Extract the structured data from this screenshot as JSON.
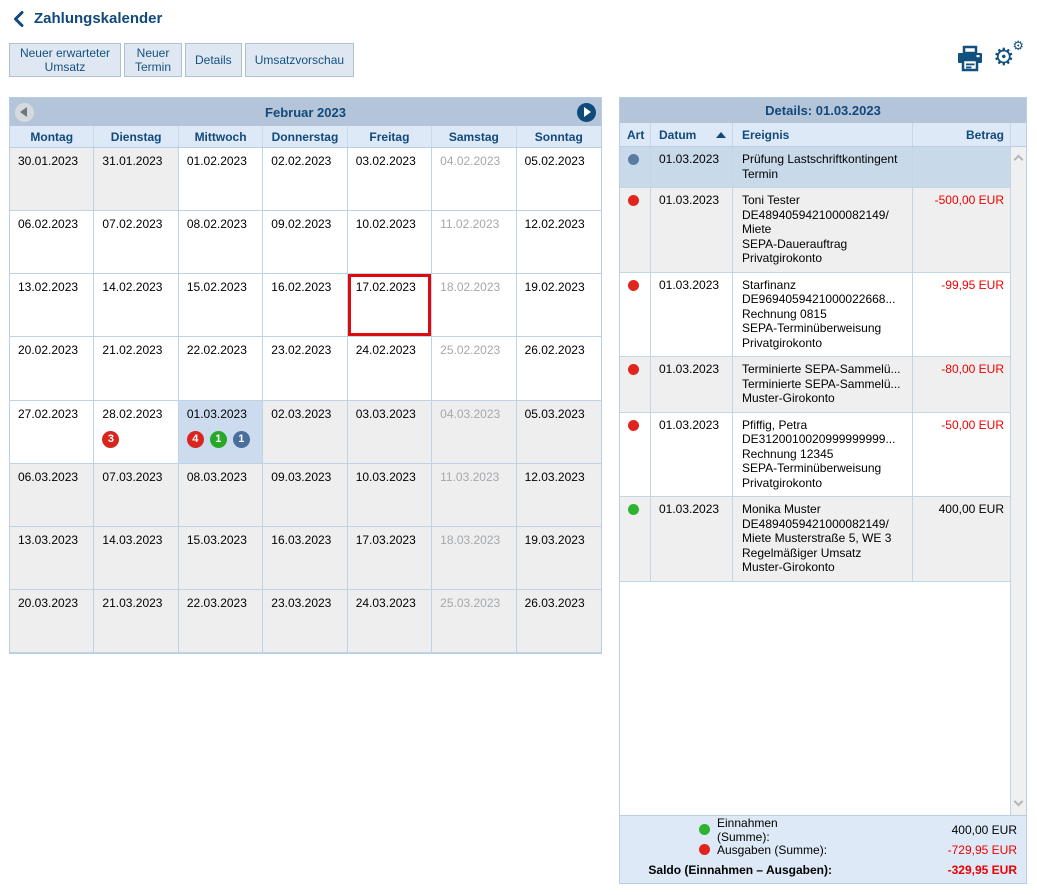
{
  "page": {
    "title": "Zahlungskalender"
  },
  "toolbar": {
    "buttons": [
      "Neuer erwarteter Umsatz",
      "Neuer Termin",
      "Details",
      "Umsatzvorschau"
    ],
    "icons": [
      "print-icon",
      "settings-gears-icon"
    ]
  },
  "colors": {
    "accent_navy": "#12497b",
    "titlebar_blue": "#b5c5d9",
    "header_light_blue": "#dde9f6",
    "selected_blue": "#c8d9ea",
    "today_border_red": "#dd0a12",
    "negative_red": "#ee0000",
    "income_green": "#2db32d",
    "expense_red": "#e0251f",
    "neutral_blue_dot": "#5b7ba4"
  },
  "calendar": {
    "title": "Februar 2023",
    "prev_icon": "left-triangle",
    "next_icon": "right-triangle",
    "day_headers": [
      "Montag",
      "Dienstag",
      "Mittwoch",
      "Donnerstag",
      "Freitag",
      "Samstag",
      "Sonntag"
    ],
    "weeks": [
      [
        {
          "date": "30.01.2023",
          "out": true
        },
        {
          "date": "31.01.2023",
          "out": true
        },
        {
          "date": "01.02.2023"
        },
        {
          "date": "02.02.2023"
        },
        {
          "date": "03.02.2023"
        },
        {
          "date": "04.02.2023",
          "muted": true
        },
        {
          "date": "05.02.2023"
        }
      ],
      [
        {
          "date": "06.02.2023"
        },
        {
          "date": "07.02.2023"
        },
        {
          "date": "08.02.2023"
        },
        {
          "date": "09.02.2023"
        },
        {
          "date": "10.02.2023"
        },
        {
          "date": "11.02.2023",
          "muted": true
        },
        {
          "date": "12.02.2023"
        }
      ],
      [
        {
          "date": "13.02.2023"
        },
        {
          "date": "14.02.2023"
        },
        {
          "date": "15.02.2023"
        },
        {
          "date": "16.02.2023"
        },
        {
          "date": "17.02.2023",
          "today": true
        },
        {
          "date": "18.02.2023",
          "muted": true
        },
        {
          "date": "19.02.2023"
        }
      ],
      [
        {
          "date": "20.02.2023"
        },
        {
          "date": "21.02.2023"
        },
        {
          "date": "22.02.2023"
        },
        {
          "date": "23.02.2023"
        },
        {
          "date": "24.02.2023"
        },
        {
          "date": "25.02.2023",
          "muted": true
        },
        {
          "date": "26.02.2023"
        }
      ],
      [
        {
          "date": "27.02.2023"
        },
        {
          "date": "28.02.2023",
          "badges": [
            {
              "color": "red",
              "count": "3"
            }
          ]
        },
        {
          "date": "01.03.2023",
          "selected": true,
          "badges": [
            {
              "color": "red",
              "count": "4"
            },
            {
              "color": "green",
              "count": "1"
            },
            {
              "color": "blue",
              "count": "1"
            }
          ]
        },
        {
          "date": "02.03.2023",
          "out": true
        },
        {
          "date": "03.03.2023",
          "out": true
        },
        {
          "date": "04.03.2023",
          "out": true,
          "muted": true
        },
        {
          "date": "05.03.2023",
          "out": true
        }
      ],
      [
        {
          "date": "06.03.2023",
          "out": true
        },
        {
          "date": "07.03.2023",
          "out": true
        },
        {
          "date": "08.03.2023",
          "out": true
        },
        {
          "date": "09.03.2023",
          "out": true
        },
        {
          "date": "10.03.2023",
          "out": true
        },
        {
          "date": "11.03.2023",
          "out": true,
          "muted": true
        },
        {
          "date": "12.03.2023",
          "out": true
        }
      ],
      [
        {
          "date": "13.03.2023",
          "out": true
        },
        {
          "date": "14.03.2023",
          "out": true
        },
        {
          "date": "15.03.2023",
          "out": true
        },
        {
          "date": "16.03.2023",
          "out": true
        },
        {
          "date": "17.03.2023",
          "out": true
        },
        {
          "date": "18.03.2023",
          "out": true,
          "muted": true
        },
        {
          "date": "19.03.2023",
          "out": true
        }
      ],
      [
        {
          "date": "20.03.2023",
          "out": true
        },
        {
          "date": "21.03.2023",
          "out": true
        },
        {
          "date": "22.03.2023",
          "out": true
        },
        {
          "date": "23.03.2023",
          "out": true
        },
        {
          "date": "24.03.2023",
          "out": true
        },
        {
          "date": "25.03.2023",
          "out": true,
          "muted": true
        },
        {
          "date": "26.03.2023",
          "out": true
        }
      ]
    ]
  },
  "details": {
    "title": "Details: 01.03.2023",
    "columns": [
      "Art",
      "Datum",
      "Ereignis",
      "Betrag"
    ],
    "sort": {
      "column": "Datum",
      "direction": "asc"
    },
    "rows": [
      {
        "dot": "blue",
        "datum": "01.03.2023",
        "ereignis": [
          "Prüfung Lastschriftkontingent",
          "Termin"
        ],
        "betrag": "",
        "negative": false,
        "selected": true
      },
      {
        "dot": "red",
        "datum": "01.03.2023",
        "ereignis": [
          "Toni Tester",
          "DE4894059421000082149/",
          "Miete",
          "SEPA-Dauerauftrag",
          "Privatgirokonto"
        ],
        "betrag": "-500,00 EUR",
        "negative": true
      },
      {
        "dot": "red",
        "datum": "01.03.2023",
        "ereignis": [
          "Starfinanz",
          "DE9694059421000022668...",
          "Rechnung 0815",
          "SEPA-Terminüberweisung",
          "Privatgirokonto"
        ],
        "betrag": "-99,95 EUR",
        "negative": true
      },
      {
        "dot": "red",
        "datum": "01.03.2023",
        "ereignis": [
          "Terminierte SEPA-Sammelü...",
          "Terminierte SEPA-Sammelü...",
          "Muster-Girokonto"
        ],
        "betrag": "-80,00 EUR",
        "negative": true
      },
      {
        "dot": "red",
        "datum": "01.03.2023",
        "ereignis": [
          "Pfiffig, Petra",
          "DE3120010020999999999...",
          "Rechnung 12345",
          "SEPA-Terminüberweisung",
          "Privatgirokonto"
        ],
        "betrag": "-50,00 EUR",
        "negative": true
      },
      {
        "dot": "green",
        "datum": "01.03.2023",
        "ereignis": [
          "Monika Muster",
          "DE4894059421000082149/",
          "Miete Musterstraße 5, WE 3",
          "Regelmäßiger Umsatz",
          "Muster-Girokonto"
        ],
        "betrag": "400,00 EUR",
        "negative": false
      }
    ],
    "summary": [
      {
        "dot": "green",
        "label": "Einnahmen (Summe):",
        "amount": "400,00 EUR",
        "negative": false,
        "bold": false
      },
      {
        "dot": "red",
        "label": "Ausgaben (Summe):",
        "amount": "-729,95 EUR",
        "negative": true,
        "bold": false
      },
      {
        "dot": null,
        "label": "Saldo (Einnahmen – Ausgaben):",
        "amount": "-329,95 EUR",
        "negative": true,
        "bold": true
      }
    ]
  }
}
